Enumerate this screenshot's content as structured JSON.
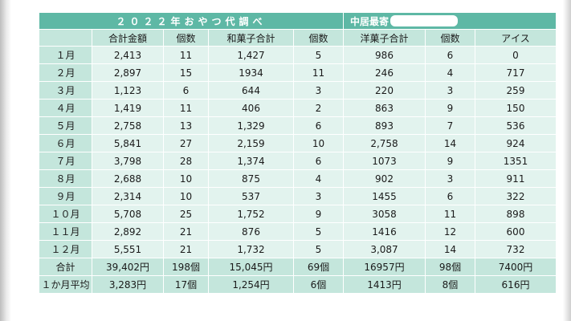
{
  "title": "２０２２年おやつ代調べ",
  "author_label": "中居最寄",
  "headers": [
    "",
    "合計金額",
    "個数",
    "和菓子合計",
    "個数",
    "洋菓子合計",
    "個数",
    "アイス"
  ],
  "rows": [
    {
      "label": "１月",
      "cells": [
        "2,413",
        "11",
        "1,427",
        "5",
        "986",
        "6",
        "0"
      ]
    },
    {
      "label": "２月",
      "cells": [
        "2,897",
        "15",
        "1934",
        "11",
        "246",
        "4",
        "717"
      ]
    },
    {
      "label": "３月",
      "cells": [
        "1,123",
        "6",
        "644",
        "3",
        "220",
        "3",
        "259"
      ]
    },
    {
      "label": "４月",
      "cells": [
        "1,419",
        "11",
        "406",
        "2",
        "863",
        "9",
        "150"
      ]
    },
    {
      "label": "５月",
      "cells": [
        "2,758",
        "13",
        "1,329",
        "6",
        "893",
        "7",
        "536"
      ]
    },
    {
      "label": "６月",
      "cells": [
        "5,841",
        "27",
        "2,159",
        "10",
        "2,758",
        "14",
        "924"
      ]
    },
    {
      "label": "７月",
      "cells": [
        "3,798",
        "28",
        "1,374",
        "6",
        "1073",
        "9",
        "1351"
      ]
    },
    {
      "label": "８月",
      "cells": [
        "2,688",
        "10",
        "875",
        "4",
        "902",
        "3",
        "911"
      ]
    },
    {
      "label": "９月",
      "cells": [
        "2,314",
        "10",
        "537",
        "3",
        "1455",
        "6",
        "322"
      ]
    },
    {
      "label": "１０月",
      "cells": [
        "5,708",
        "25",
        "1,752",
        "9",
        "3058",
        "11",
        "898"
      ]
    },
    {
      "label": "１１月",
      "cells": [
        "2,892",
        "21",
        "876",
        "5",
        "1416",
        "12",
        "600"
      ]
    },
    {
      "label": "１２月",
      "cells": [
        "5,551",
        "21",
        "1,732",
        "5",
        "3,087",
        "14",
        "732"
      ]
    }
  ],
  "totals": [
    {
      "label": "合計",
      "cells": [
        "39,402円",
        "198個",
        "15,045円",
        "69個",
        "16957円",
        "98個",
        "7400円"
      ]
    },
    {
      "label": "１か月平均",
      "cells": [
        "3,283円",
        "17個",
        "1,254円",
        "6個",
        "1413円",
        "8個",
        "616円"
      ]
    }
  ],
  "colors": {
    "title_bar": "#5eb8a5",
    "header_fill": "#c4e6dc",
    "cell_fill": "#e2f3ee",
    "border": "#ffffff"
  }
}
